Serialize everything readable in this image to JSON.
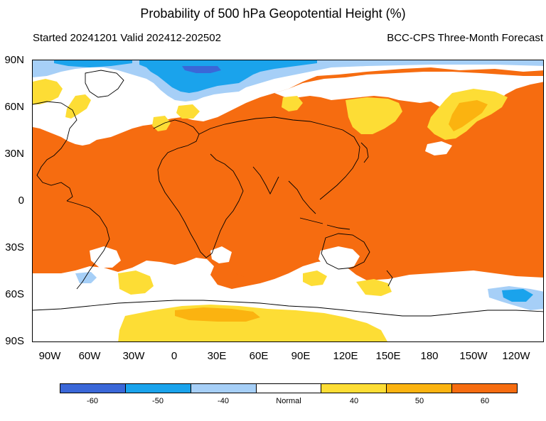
{
  "title": "Probability of 500 hPa Geopotential Height (%)",
  "subtitle_left": "Started 20241201  Valid 202412-202502",
  "subtitle_right": "BCC-CPS Three-Month Forecast",
  "lat_labels": [
    "90N",
    "60N",
    "30N",
    "0",
    "30S",
    "60S",
    "90S"
  ],
  "lon_labels": [
    "90W",
    "60W",
    "30W",
    "0",
    "30E",
    "60E",
    "90E",
    "120E",
    "150E",
    "180",
    "150W",
    "120W"
  ],
  "legend": {
    "colors": [
      "#3a67d8",
      "#1aa3ec",
      "#a6cff7",
      "#ffffff",
      "#fddd35",
      "#fbb310",
      "#f66c10"
    ],
    "labels": [
      "-60",
      "-50",
      "-40",
      "Normal",
      "40",
      "50",
      "60"
    ]
  },
  "map": {
    "projection": "cylindrical equidistant",
    "lon_range": [
      -110,
      -100
    ],
    "lat_range": [
      -90,
      90
    ],
    "background_category": "60"
  }
}
